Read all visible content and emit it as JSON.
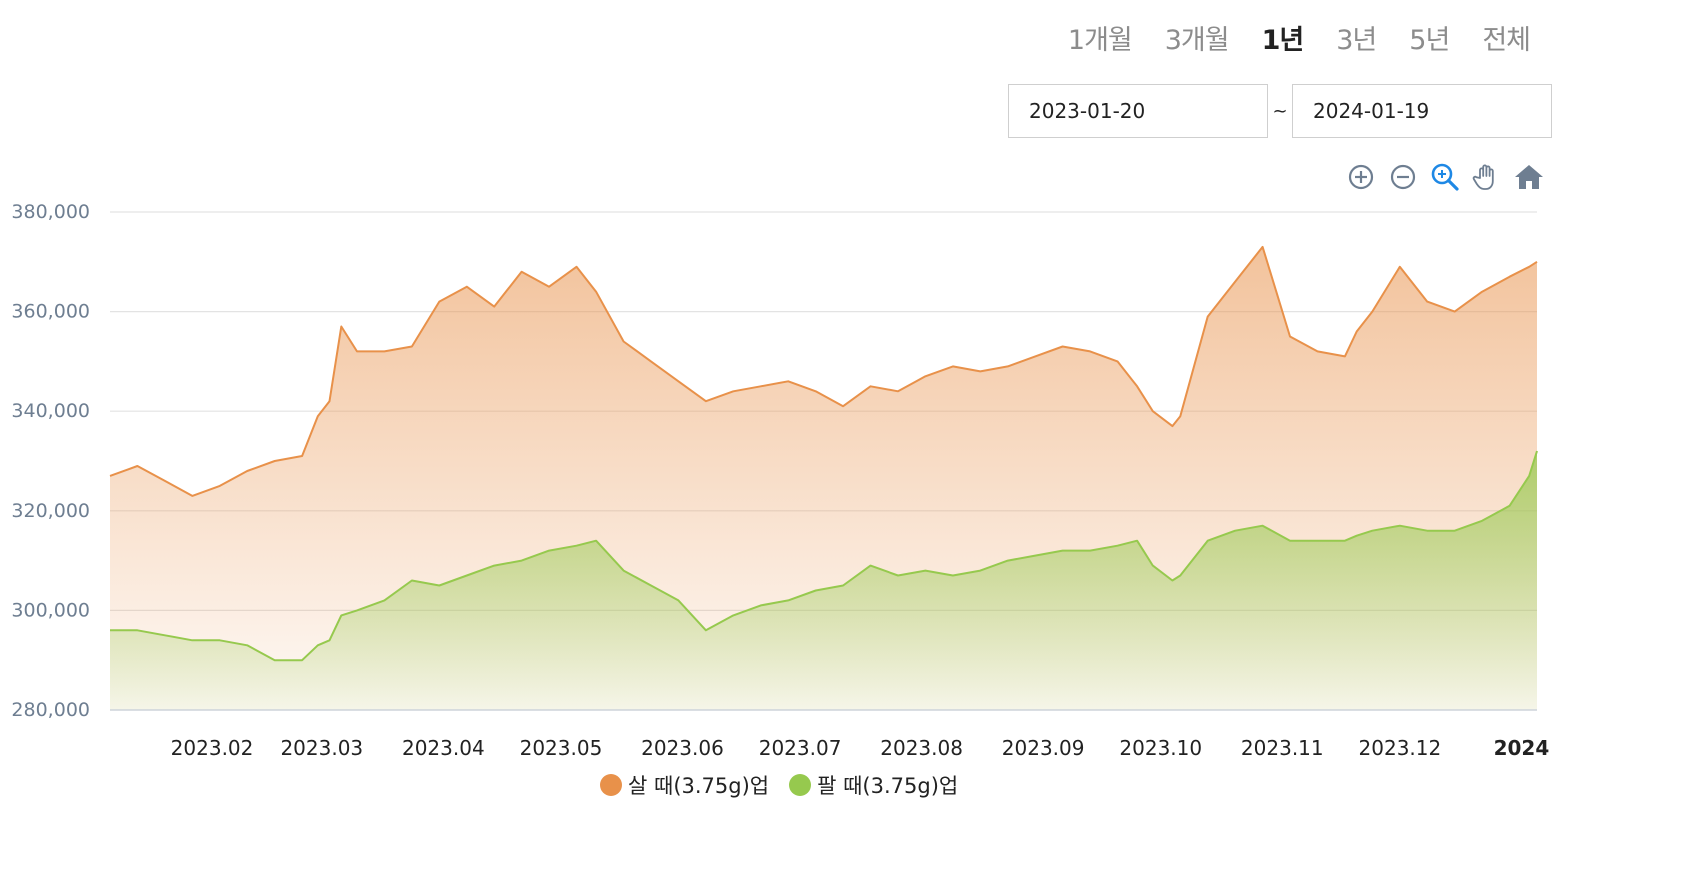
{
  "range_tabs": [
    {
      "label": "1개월",
      "active": false
    },
    {
      "label": "3개월",
      "active": false
    },
    {
      "label": "1년",
      "active": true
    },
    {
      "label": "3년",
      "active": false
    },
    {
      "label": "5년",
      "active": false
    },
    {
      "label": "전체",
      "active": false
    }
  ],
  "date_range": {
    "start": "2023-01-20",
    "separator": "~",
    "end": "2024-01-19"
  },
  "toolbar": [
    "zoom-in-icon",
    "zoom-out-icon",
    "selection-zoom-icon",
    "pan-hand-icon",
    "home-reset-icon"
  ],
  "colors": {
    "buy": "#e8914a",
    "sell": "#96c94e",
    "grid": "#e3e3e3",
    "axis_text": "#6e7e91"
  },
  "legend": [
    {
      "label": "살 때(3.75g)업",
      "color": "#e8914a"
    },
    {
      "label": "팔 때(3.75g)업",
      "color": "#96c94e"
    }
  ],
  "chart_data": {
    "type": "area",
    "title": "",
    "xlabel": "",
    "ylabel": "",
    "ylim": [
      280000,
      380000
    ],
    "y_ticks": [
      "380,000",
      "360,000",
      "340,000",
      "320,000",
      "300,000",
      "280,000"
    ],
    "x_ticks": [
      "2023.02",
      "2023.03",
      "2023.04",
      "2023.05",
      "2023.06",
      "2023.07",
      "2023.08",
      "2023.09",
      "2023.10",
      "2023.11",
      "2023.12",
      "2024"
    ],
    "grid": true,
    "legend_position": "bottom",
    "x": [
      "2023-01-20",
      "2023-01-27",
      "2023-02-03",
      "2023-02-10",
      "2023-02-17",
      "2023-02-24",
      "2023-03-03",
      "2023-03-10",
      "2023-03-14",
      "2023-03-17",
      "2023-03-20",
      "2023-03-24",
      "2023-03-31",
      "2023-04-07",
      "2023-04-14",
      "2023-04-21",
      "2023-04-28",
      "2023-05-05",
      "2023-05-12",
      "2023-05-19",
      "2023-05-24",
      "2023-05-31",
      "2023-06-07",
      "2023-06-14",
      "2023-06-21",
      "2023-06-28",
      "2023-07-05",
      "2023-07-12",
      "2023-07-19",
      "2023-07-26",
      "2023-08-02",
      "2023-08-09",
      "2023-08-16",
      "2023-08-23",
      "2023-08-30",
      "2023-09-06",
      "2023-09-13",
      "2023-09-20",
      "2023-09-27",
      "2023-10-04",
      "2023-10-09",
      "2023-10-13",
      "2023-10-18",
      "2023-10-20",
      "2023-10-27",
      "2023-11-03",
      "2023-11-10",
      "2023-11-17",
      "2023-11-24",
      "2023-12-01",
      "2023-12-04",
      "2023-12-08",
      "2023-12-15",
      "2023-12-22",
      "2023-12-29",
      "2024-01-05",
      "2024-01-12",
      "2024-01-17",
      "2024-01-19"
    ],
    "series": [
      {
        "name": "살 때(3.75g)업",
        "values": [
          327000,
          329000,
          326000,
          323000,
          325000,
          328000,
          330000,
          331000,
          339000,
          342000,
          357000,
          352000,
          352000,
          353000,
          362000,
          365000,
          361000,
          368000,
          365000,
          369000,
          364000,
          354000,
          350000,
          346000,
          342000,
          344000,
          345000,
          346000,
          344000,
          341000,
          345000,
          344000,
          347000,
          349000,
          348000,
          349000,
          351000,
          353000,
          352000,
          350000,
          345000,
          340000,
          337000,
          339000,
          359000,
          366000,
          373000,
          355000,
          352000,
          351000,
          356000,
          360000,
          369000,
          362000,
          360000,
          364000,
          367000,
          369000,
          370000
        ]
      },
      {
        "name": "팔 때(3.75g)업",
        "values": [
          296000,
          296000,
          295000,
          294000,
          294000,
          293000,
          290000,
          290000,
          293000,
          294000,
          299000,
          300000,
          302000,
          306000,
          305000,
          307000,
          309000,
          310000,
          312000,
          313000,
          314000,
          308000,
          305000,
          302000,
          296000,
          299000,
          301000,
          302000,
          304000,
          305000,
          309000,
          307000,
          308000,
          307000,
          308000,
          310000,
          311000,
          312000,
          312000,
          313000,
          314000,
          309000,
          306000,
          307000,
          314000,
          316000,
          317000,
          314000,
          314000,
          314000,
          315000,
          316000,
          317000,
          316000,
          316000,
          318000,
          321000,
          327000,
          332000
        ]
      }
    ]
  }
}
